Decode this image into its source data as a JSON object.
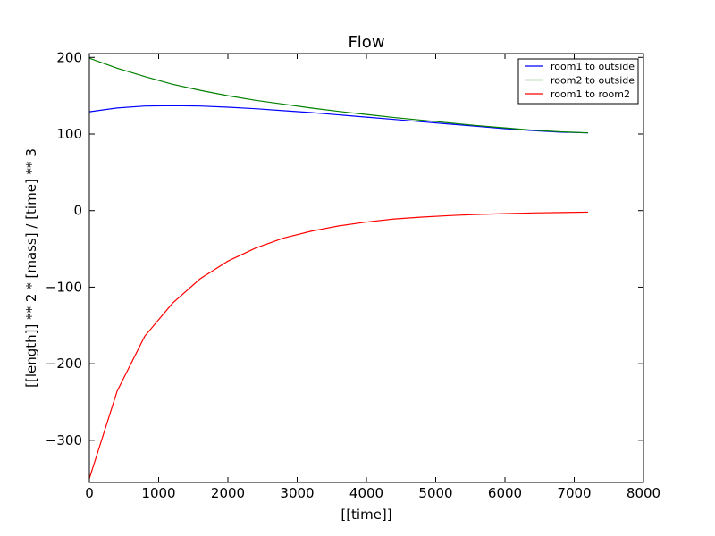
{
  "chart_data": {
    "type": "line",
    "title": "Flow",
    "xlabel": "[[time]]",
    "ylabel": "[[length]] ** 2 * [mass] / [time] ** 3",
    "xlim": [
      0,
      8000
    ],
    "ylim": [
      -355,
      205
    ],
    "xticks": [
      0,
      1000,
      2000,
      3000,
      4000,
      5000,
      6000,
      7000,
      8000
    ],
    "yticks": [
      -300,
      -200,
      -100,
      0,
      100,
      200
    ],
    "grid": false,
    "legend_position": "top-right",
    "x": [
      0,
      400,
      800,
      1200,
      1600,
      2000,
      2400,
      2800,
      3200,
      3600,
      4000,
      4400,
      4800,
      5200,
      5600,
      6000,
      6400,
      6800,
      7200
    ],
    "series": [
      {
        "name": "room1 to outside",
        "color": "#0000ff",
        "values": [
          129,
          134,
          136.5,
          137,
          136.5,
          135,
          133,
          130.5,
          128,
          125,
          122,
          119,
          116,
          113,
          110,
          107,
          104.5,
          102.5,
          101.5
        ]
      },
      {
        "name": "room2 to outside",
        "color": "#008000",
        "values": [
          199,
          186,
          175,
          165,
          157,
          150,
          144,
          139,
          134,
          129.5,
          125.5,
          121.5,
          118,
          114.5,
          111,
          108,
          105,
          103,
          101.5
        ]
      },
      {
        "name": "room1 to room2",
        "color": "#ff0000",
        "values": [
          -350,
          -236,
          -164,
          -121,
          -89,
          -66,
          -49,
          -36,
          -27,
          -20,
          -15,
          -11,
          -8.5,
          -6.5,
          -5,
          -4,
          -3,
          -2.5,
          -2
        ]
      }
    ]
  }
}
